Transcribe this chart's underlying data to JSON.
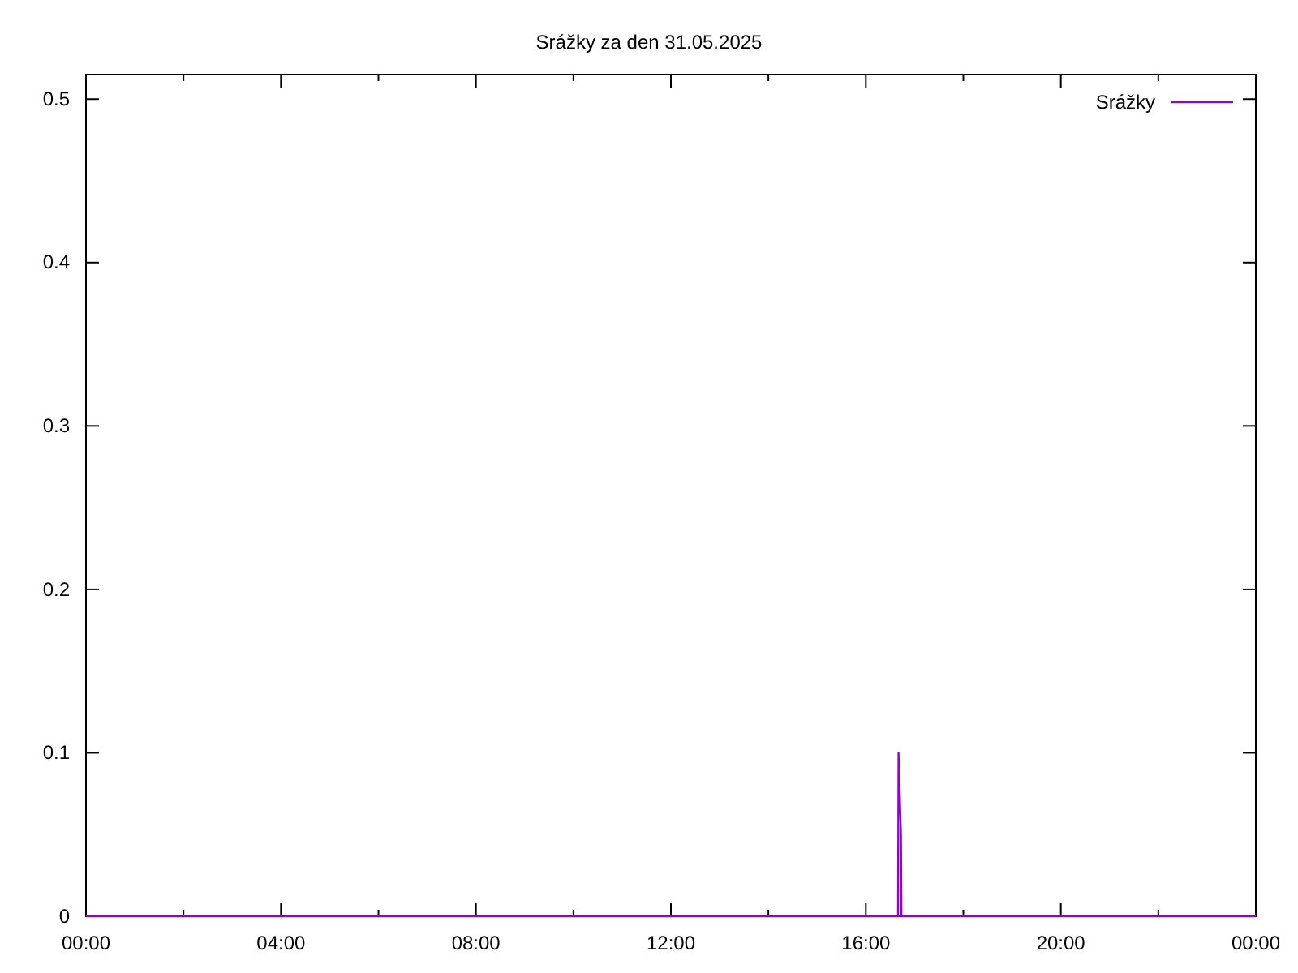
{
  "chart_data": {
    "type": "line",
    "title": "Srážky za den 31.05.2025",
    "x": [
      0,
      16.66,
      16.67,
      16.72,
      16.73,
      24
    ],
    "series": [
      {
        "name": "Srážky",
        "color": "#9400d3",
        "values": [
          0,
          0,
          0.1,
          0.05,
          0,
          0
        ]
      }
    ],
    "xlim": [
      0,
      24
    ],
    "xticks": [
      {
        "value": 0,
        "label": "00:00"
      },
      {
        "value": 2,
        "label": null
      },
      {
        "value": 4,
        "label": "04:00"
      },
      {
        "value": 6,
        "label": null
      },
      {
        "value": 8,
        "label": "08:00"
      },
      {
        "value": 10,
        "label": null
      },
      {
        "value": 12,
        "label": "12:00"
      },
      {
        "value": 14,
        "label": null
      },
      {
        "value": 16,
        "label": "16:00"
      },
      {
        "value": 18,
        "label": null
      },
      {
        "value": 20,
        "label": "20:00"
      },
      {
        "value": 22,
        "label": null
      },
      {
        "value": 24,
        "label": "00:00"
      }
    ],
    "ylim": [
      0,
      0.515
    ],
    "yticks": [
      0,
      0.1,
      0.2,
      0.3,
      0.4,
      0.5
    ],
    "grid": false,
    "legend": "top right",
    "marker": "none",
    "line_style": "solid"
  }
}
